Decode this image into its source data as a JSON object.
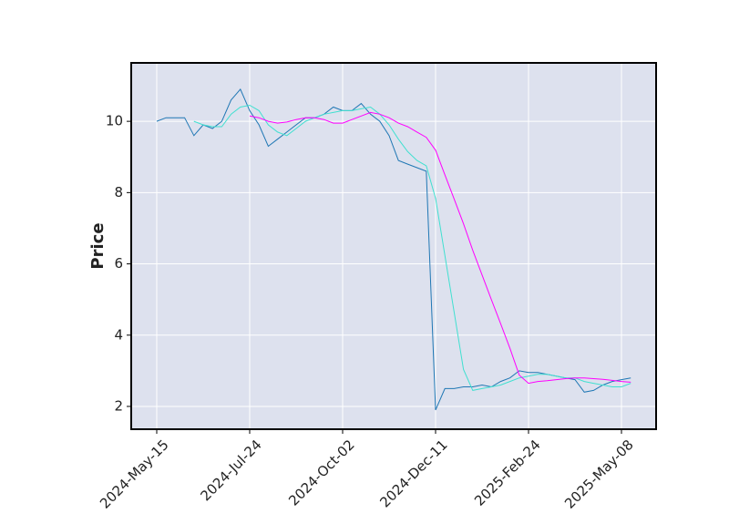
{
  "chart_data": {
    "type": "line",
    "y_label": "Price",
    "categories": [
      "2024-May-15",
      null,
      null,
      null,
      null,
      null,
      null,
      null,
      null,
      null,
      "2024-Jul-24",
      null,
      null,
      null,
      null,
      null,
      null,
      null,
      null,
      null,
      "2024-Oct-02",
      null,
      null,
      null,
      null,
      null,
      null,
      null,
      null,
      null,
      "2024-Dec-11",
      null,
      null,
      null,
      null,
      null,
      null,
      null,
      null,
      null,
      "2025-Feb-24",
      null,
      null,
      null,
      null,
      null,
      null,
      null,
      null,
      null,
      "2025-May-08",
      null
    ],
    "series": [
      {
        "color": "#1f77b4",
        "values": [
          10.0,
          10.1,
          10.1,
          10.1,
          9.6,
          9.9,
          9.8,
          10.0,
          10.6,
          10.9,
          10.3,
          9.9,
          9.3,
          9.5,
          9.7,
          9.9,
          10.1,
          10.1,
          10.2,
          10.4,
          10.3,
          10.3,
          10.5,
          10.2,
          10.0,
          9.6,
          8.9,
          8.8,
          8.7,
          8.6,
          1.9,
          2.5,
          2.5,
          2.55,
          2.55,
          2.6,
          2.55,
          2.7,
          2.8,
          3.0,
          2.95,
          2.95,
          2.9,
          2.85,
          2.8,
          2.75,
          2.4,
          2.45,
          2.6,
          2.7,
          2.75,
          2.8
        ]
      },
      {
        "color": "#40e0d0",
        "values": [
          null,
          null,
          null,
          null,
          10.0,
          9.9,
          9.85,
          9.85,
          10.2,
          10.4,
          10.45,
          10.3,
          9.9,
          9.7,
          9.6,
          9.8,
          10.0,
          10.1,
          10.2,
          10.25,
          10.3,
          10.3,
          10.35,
          10.4,
          10.2,
          9.9,
          9.5,
          9.15,
          8.9,
          8.75,
          7.84,
          6.24,
          4.64,
          3.04,
          2.45,
          2.5,
          2.55,
          2.6,
          2.7,
          2.8,
          2.85,
          2.9,
          2.9,
          2.85,
          2.8,
          2.8,
          2.7,
          2.65,
          2.6,
          2.55,
          2.55,
          2.65
        ]
      },
      {
        "color": "#ff00ff",
        "values": [
          null,
          null,
          null,
          null,
          null,
          null,
          null,
          null,
          null,
          null,
          10.15,
          10.1,
          10.0,
          9.95,
          9.98,
          10.05,
          10.1,
          10.1,
          10.05,
          9.95,
          9.95,
          10.05,
          10.15,
          10.25,
          10.2,
          10.1,
          9.95,
          9.85,
          9.7,
          9.55,
          9.19,
          8.5,
          7.82,
          7.13,
          6.38,
          5.69,
          5.0,
          4.32,
          3.63,
          2.88,
          2.65,
          2.7,
          2.72,
          2.75,
          2.78,
          2.8,
          2.8,
          2.78,
          2.76,
          2.73,
          2.7,
          2.68
        ]
      }
    ],
    "ylim": [
      1.36,
      11.64
    ],
    "yticks": [
      2,
      4,
      6,
      8,
      10
    ],
    "grid": true,
    "background": "#dde1ee"
  }
}
